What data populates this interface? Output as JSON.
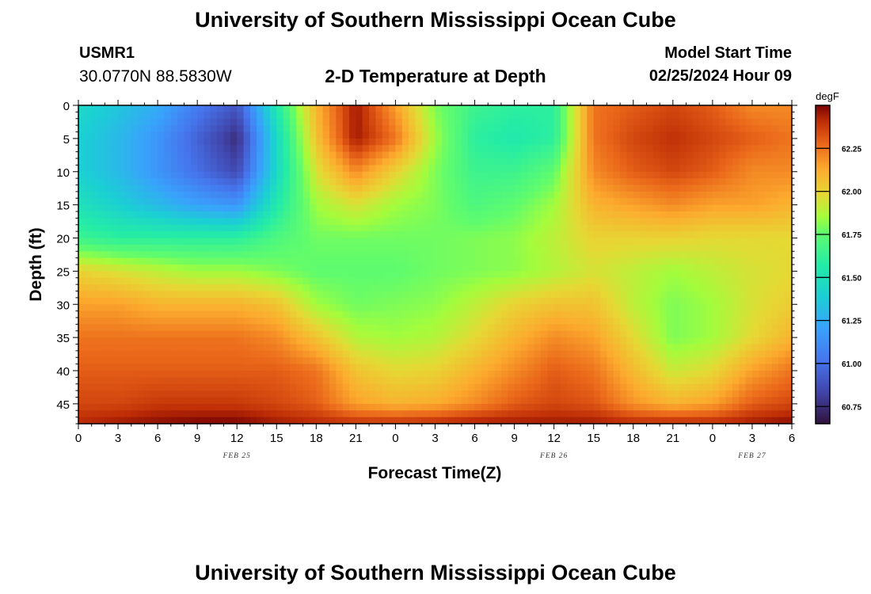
{
  "header": {
    "title": "University of Southern Mississippi Ocean Cube",
    "station_id": "USMR1",
    "coordinates": "30.0770N  88.5830W",
    "plot_title": "2-D Temperature at Depth",
    "model_start_label": "Model Start Time",
    "model_start_value": "02/25/2024 Hour 09"
  },
  "footer": {
    "title": "University of Southern Mississippi Ocean Cube"
  },
  "chart_data": {
    "type": "heatmap",
    "title": "2-D Temperature at Depth",
    "xlabel": "Forecast Time(Z)",
    "ylabel": "Depth (ft)",
    "x_tick_labels": [
      "0",
      "3",
      "6",
      "9",
      "12",
      "15",
      "18",
      "21",
      "0",
      "3",
      "6",
      "9",
      "12",
      "15",
      "18",
      "21",
      "0",
      "3",
      "6"
    ],
    "x_range_hours": [
      0,
      54
    ],
    "date_labels": [
      {
        "label": "FEB 25",
        "hour": 12
      },
      {
        "label": "FEB 26",
        "hour": 36
      },
      {
        "label": "FEB 27",
        "hour": 51
      }
    ],
    "y_ticks": [
      0,
      5,
      10,
      15,
      20,
      25,
      30,
      35,
      40,
      45
    ],
    "y_range": [
      0,
      48
    ],
    "y_inverted": true,
    "colorbar": {
      "unit": "degF",
      "tick_labels": [
        "62.25",
        "62.00",
        "61.75",
        "61.50",
        "61.25",
        "61.00",
        "60.75"
      ],
      "tick_values": [
        62.25,
        62.0,
        61.75,
        61.5,
        61.25,
        61.0,
        60.75
      ],
      "range": [
        60.65,
        62.5
      ],
      "colormap": "turbo"
    },
    "approx_values": {
      "depths_ft": [
        0,
        5,
        10,
        15,
        20,
        25,
        30,
        35,
        40,
        45,
        48
      ],
      "hours": [
        0,
        3,
        6,
        9,
        12,
        15,
        18,
        21,
        24,
        27,
        30,
        33,
        36,
        39,
        42,
        45,
        48,
        51,
        54
      ],
      "temperature_degF": [
        [
          61.45,
          61.35,
          61.25,
          61.05,
          60.9,
          61.55,
          62.1,
          62.45,
          62.15,
          61.8,
          61.65,
          61.6,
          61.6,
          62.25,
          62.3,
          62.35,
          62.3,
          62.2,
          62.2
        ],
        [
          61.4,
          61.3,
          61.15,
          60.95,
          60.75,
          61.45,
          62.05,
          62.45,
          62.25,
          61.85,
          61.6,
          61.55,
          61.6,
          62.25,
          62.35,
          62.4,
          62.35,
          62.3,
          62.25
        ],
        [
          61.4,
          61.3,
          61.15,
          61.0,
          60.85,
          61.45,
          61.95,
          62.2,
          62.0,
          61.8,
          61.65,
          61.65,
          61.75,
          62.2,
          62.3,
          62.35,
          62.3,
          62.2,
          62.2
        ],
        [
          61.5,
          61.4,
          61.3,
          61.2,
          61.15,
          61.55,
          61.85,
          61.95,
          61.85,
          61.8,
          61.7,
          61.75,
          61.85,
          62.1,
          62.15,
          62.2,
          62.15,
          62.15,
          62.1
        ],
        [
          61.65,
          61.6,
          61.6,
          61.6,
          61.6,
          61.7,
          61.78,
          61.78,
          61.78,
          61.78,
          61.8,
          61.82,
          61.9,
          62.0,
          62.0,
          62.0,
          61.98,
          61.98,
          61.98
        ],
        [
          62.0,
          61.95,
          61.9,
          61.85,
          61.85,
          61.8,
          61.75,
          61.75,
          61.75,
          61.78,
          61.8,
          61.82,
          61.88,
          61.95,
          61.9,
          61.85,
          61.9,
          61.95,
          61.98
        ],
        [
          62.15,
          62.15,
          62.1,
          62.1,
          62.1,
          62.05,
          61.85,
          61.78,
          61.8,
          61.82,
          61.9,
          62.0,
          62.05,
          62.05,
          61.9,
          61.8,
          61.85,
          61.95,
          62.02
        ],
        [
          62.25,
          62.25,
          62.25,
          62.25,
          62.25,
          62.2,
          62.05,
          61.88,
          61.85,
          61.88,
          61.98,
          62.1,
          62.2,
          62.15,
          61.98,
          61.8,
          61.85,
          61.98,
          62.1
        ],
        [
          62.3,
          62.3,
          62.3,
          62.3,
          62.3,
          62.3,
          62.25,
          62.05,
          61.98,
          62.0,
          62.1,
          62.2,
          62.3,
          62.25,
          62.08,
          61.92,
          61.98,
          62.15,
          62.25
        ],
        [
          62.35,
          62.35,
          62.38,
          62.38,
          62.38,
          62.35,
          62.3,
          62.15,
          62.1,
          62.12,
          62.2,
          62.3,
          62.35,
          62.32,
          62.18,
          62.1,
          62.15,
          62.3,
          62.35
        ],
        [
          62.42,
          62.45,
          62.48,
          62.5,
          62.5,
          62.45,
          62.42,
          62.4,
          62.4,
          62.42,
          62.45,
          62.45,
          62.45,
          62.45,
          62.42,
          62.42,
          62.42,
          62.45,
          62.48
        ]
      ]
    }
  }
}
